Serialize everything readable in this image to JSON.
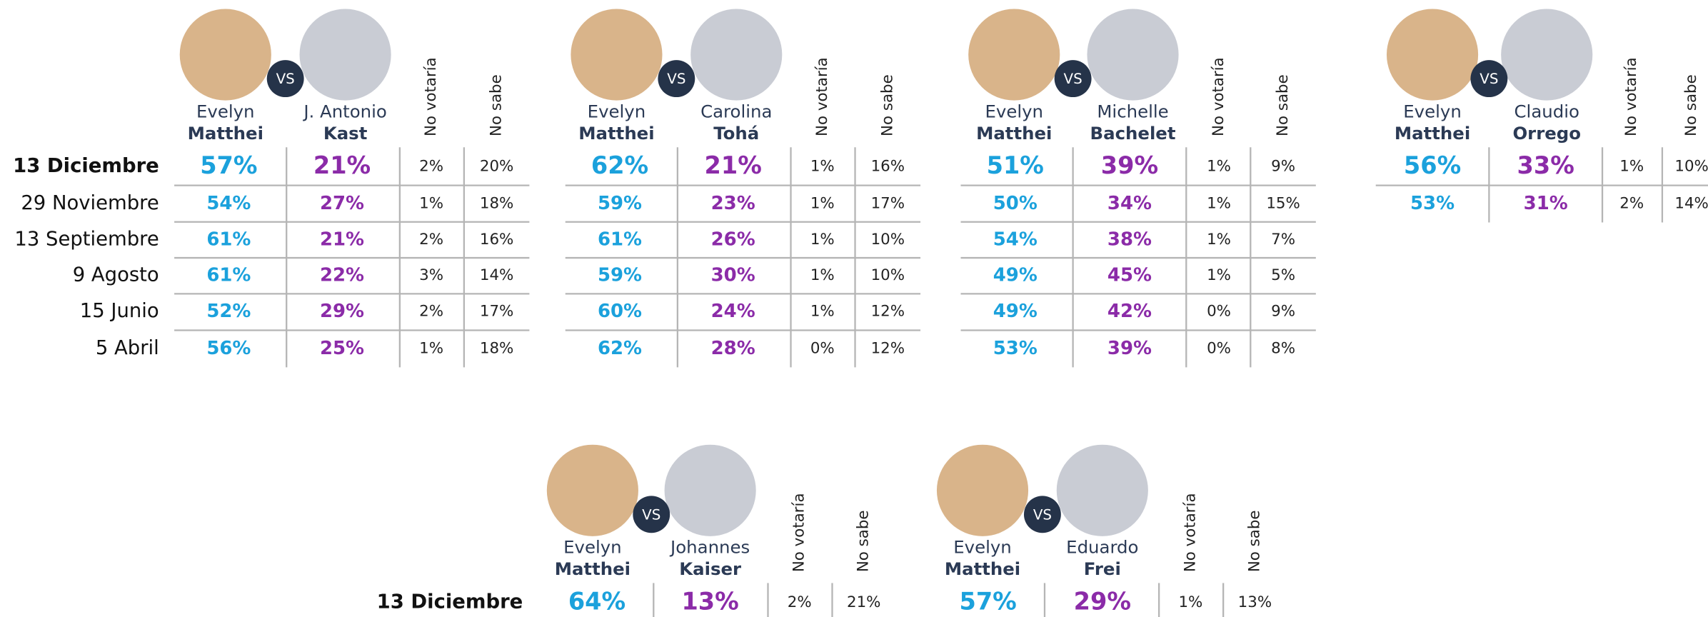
{
  "vs": "VS",
  "columns": [
    "No votaría",
    "No sabe"
  ],
  "top": {
    "dates": [
      "13 Diciembre",
      "29 Noviembre",
      "13 Septiembre",
      "9 Agosto",
      "15 Junio",
      "5 Abril"
    ],
    "matchups": [
      {
        "candidate_1": {
          "first": "Evelyn",
          "last": "Matthei"
        },
        "candidate_2": {
          "first": "J. Antonio",
          "last": "Kast"
        },
        "rows": [
          [
            "57%",
            "21%",
            "2%",
            "20%"
          ],
          [
            "54%",
            "27%",
            "1%",
            "18%"
          ],
          [
            "61%",
            "21%",
            "2%",
            "16%"
          ],
          [
            "61%",
            "22%",
            "3%",
            "14%"
          ],
          [
            "52%",
            "29%",
            "2%",
            "17%"
          ],
          [
            "56%",
            "25%",
            "1%",
            "18%"
          ]
        ]
      },
      {
        "candidate_1": {
          "first": "Evelyn",
          "last": "Matthei"
        },
        "candidate_2": {
          "first": "Carolina",
          "last": "Tohá"
        },
        "rows": [
          [
            "62%",
            "21%",
            "1%",
            "16%"
          ],
          [
            "59%",
            "23%",
            "1%",
            "17%"
          ],
          [
            "61%",
            "26%",
            "1%",
            "10%"
          ],
          [
            "59%",
            "30%",
            "1%",
            "10%"
          ],
          [
            "60%",
            "24%",
            "1%",
            "12%"
          ],
          [
            "62%",
            "28%",
            "0%",
            "12%"
          ]
        ]
      },
      {
        "candidate_1": {
          "first": "Evelyn",
          "last": "Matthei"
        },
        "candidate_2": {
          "first": "Michelle",
          "last": "Bachelet"
        },
        "rows": [
          [
            "51%",
            "39%",
            "1%",
            "9%"
          ],
          [
            "50%",
            "34%",
            "1%",
            "15%"
          ],
          [
            "54%",
            "38%",
            "1%",
            "7%"
          ],
          [
            "49%",
            "45%",
            "1%",
            "5%"
          ],
          [
            "49%",
            "42%",
            "0%",
            "9%"
          ],
          [
            "53%",
            "39%",
            "0%",
            "8%"
          ]
        ]
      },
      {
        "candidate_1": {
          "first": "Evelyn",
          "last": "Matthei"
        },
        "candidate_2": {
          "first": "Claudio",
          "last": "Orrego"
        },
        "rows": [
          [
            "56%",
            "33%",
            "1%",
            "10%"
          ],
          [
            "53%",
            "31%",
            "2%",
            "14%"
          ]
        ]
      }
    ]
  },
  "bottom": {
    "dates": [
      "13 Diciembre"
    ],
    "matchups": [
      {
        "candidate_1": {
          "first": "Evelyn",
          "last": "Matthei"
        },
        "candidate_2": {
          "first": "Johannes",
          "last": "Kaiser"
        },
        "rows": [
          [
            "64%",
            "13%",
            "2%",
            "21%"
          ]
        ]
      },
      {
        "candidate_1": {
          "first": "Evelyn",
          "last": "Matthei"
        },
        "candidate_2": {
          "first": "Eduardo",
          "last": "Frei"
        },
        "rows": [
          [
            "57%",
            "29%",
            "1%",
            "13%"
          ]
        ]
      }
    ]
  }
}
